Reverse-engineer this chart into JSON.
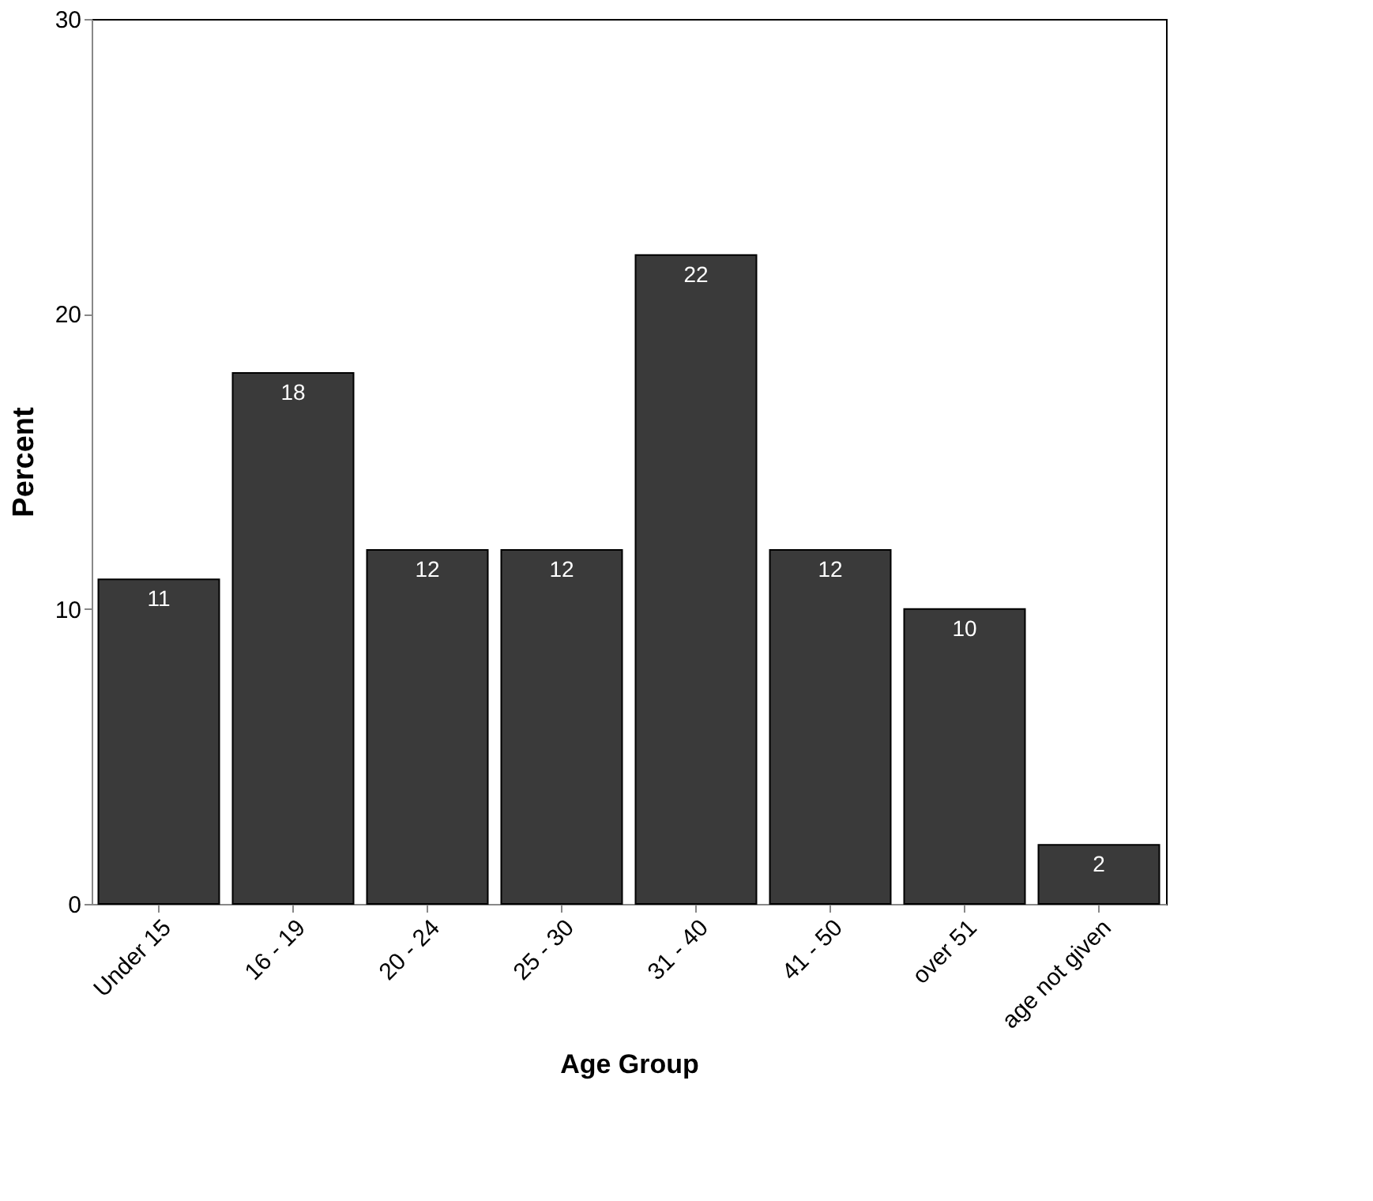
{
  "chart_data": {
    "type": "bar",
    "xlabel": "Age Group",
    "ylabel": "Percent",
    "categories": [
      "Under 15",
      "16 - 19",
      "20 - 24",
      "25 - 30",
      "31 - 40",
      "41 - 50",
      "over 51",
      "age not given"
    ],
    "values": [
      11,
      18,
      12,
      12,
      22,
      12,
      10,
      2
    ],
    "color": "#3a3a3a",
    "ylim": [
      0,
      30
    ],
    "yticks": [
      0,
      10,
      20,
      30
    ],
    "grid": false,
    "data_labels": true
  }
}
